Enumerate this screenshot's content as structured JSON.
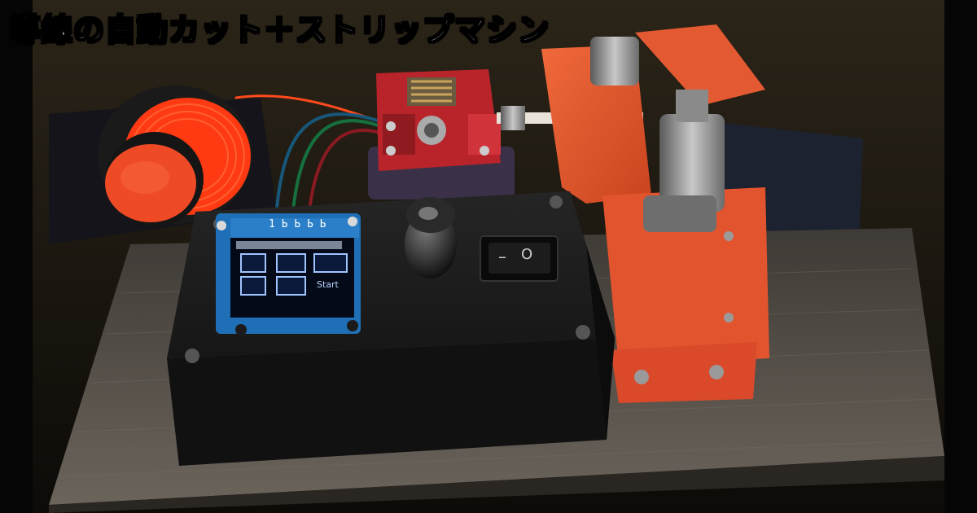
{
  "title": "導線の自動カット＋ストリップマシン",
  "oled": {
    "top_text": "1 Ь Ь Ь Ь",
    "start_label": "Start"
  },
  "switch": {
    "left_symbol": "–",
    "right_symbol": "O"
  },
  "colors": {
    "wire": "#ff4a1c",
    "printed_parts": "#e2542e",
    "enclosure": "#1a1a1a",
    "extruder": "#b8242a",
    "oled_frame": "#1e6fb5",
    "table": "#5d564f"
  }
}
